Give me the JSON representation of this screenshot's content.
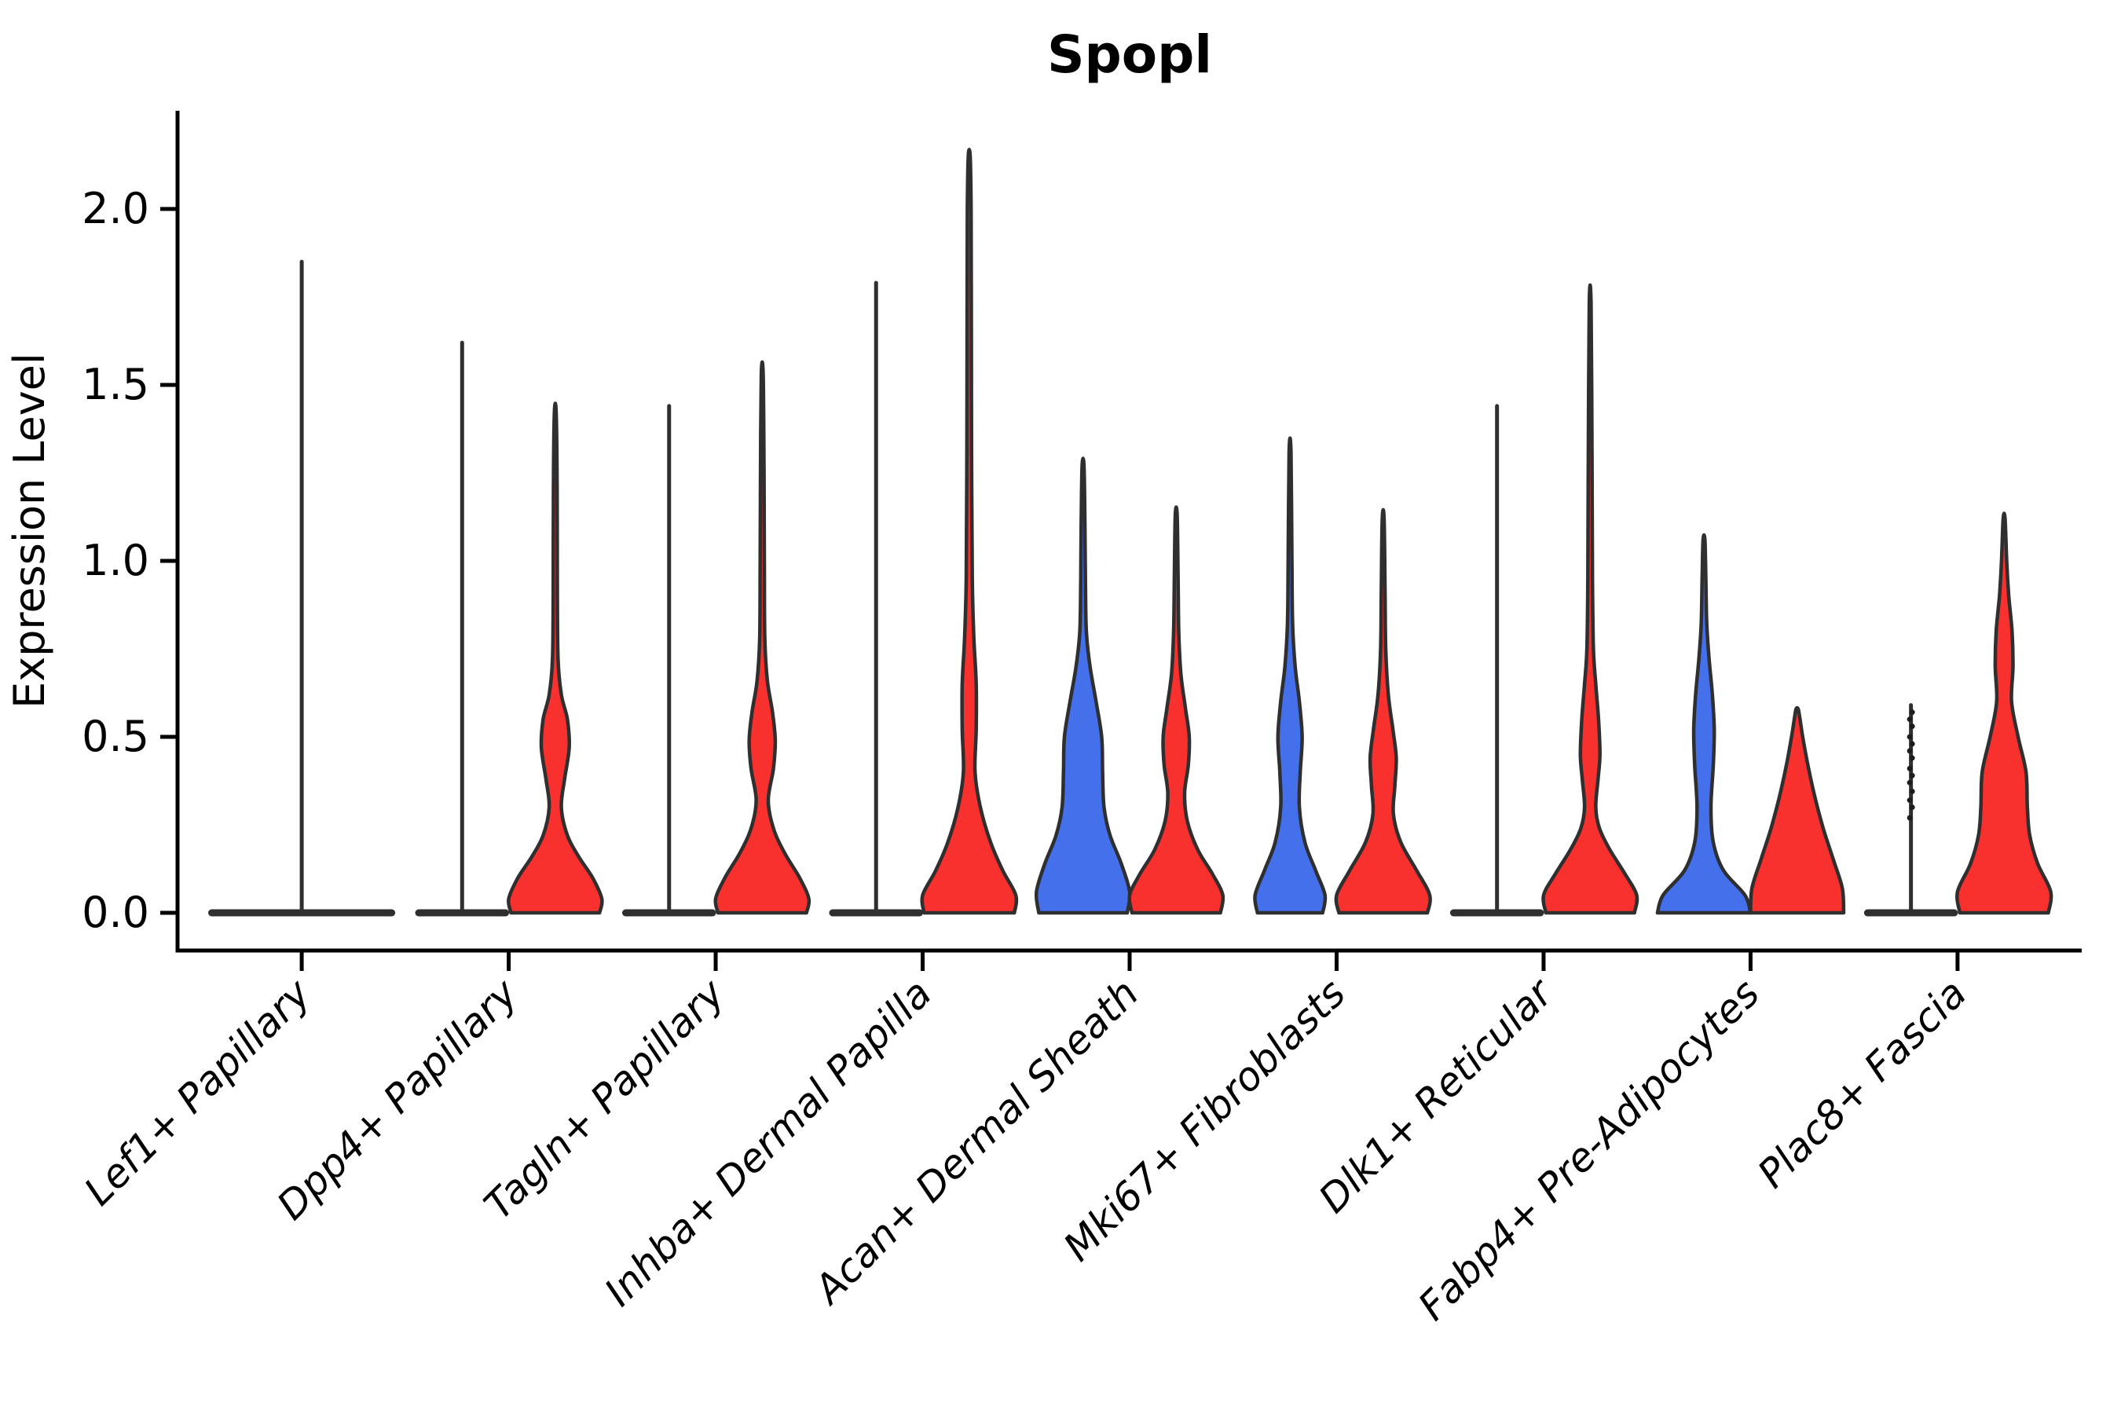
{
  "chart_data": {
    "type": "violin",
    "title": "Spopl",
    "ylabel": "Expression Level",
    "yticks": [
      "0.0",
      "0.5",
      "1.0",
      "1.5",
      "2.0"
    ],
    "ytick_values": [
      0.0,
      0.5,
      1.0,
      1.5,
      2.0
    ],
    "ylim": [
      -0.11,
      2.28
    ],
    "grid": false,
    "legend": "none",
    "colors": {
      "blue_fill": "#4470EB",
      "red_fill": "#F8312F",
      "outline": "#2F2F2F",
      "axis": "#000000"
    },
    "categories": [
      "Lef1+ Papillary",
      "Dpp4+ Papillary",
      "Tagln+ Papillary",
      "Inhba+ Dermal Papilla",
      "Acan+ Dermal Sheath",
      "Mki67+ Fibroblasts",
      "Dlk1+ Reticular",
      "Fabp4+ Pre-Adipocytes",
      "Plac8+ Fascia"
    ],
    "groups": [
      {
        "category": "Lef1+ Papillary",
        "violins": [
          {
            "side": "center",
            "color": "none",
            "kind": "flat_spike",
            "top": 1.85,
            "width_units": 0.9
          }
        ]
      },
      {
        "category": "Dpp4+ Papillary",
        "violins": [
          {
            "side": "left",
            "color": "blue",
            "kind": "flat_spike",
            "top": 1.62,
            "width_units": 0.45
          },
          {
            "side": "right",
            "color": "red",
            "kind": "density",
            "top": 1.42,
            "width_units": 0.45,
            "profile": [
              [
                0,
                0.95
              ],
              [
                0.04,
                1.0
              ],
              [
                0.1,
                0.8
              ],
              [
                0.16,
                0.5
              ],
              [
                0.22,
                0.26
              ],
              [
                0.3,
                0.13
              ],
              [
                0.38,
                0.2
              ],
              [
                0.47,
                0.3
              ],
              [
                0.55,
                0.26
              ],
              [
                0.62,
                0.13
              ],
              [
                0.72,
                0.06
              ],
              [
                0.9,
                0.045
              ],
              [
                1.2,
                0.04
              ],
              [
                1.42,
                0.02
              ]
            ]
          }
        ]
      },
      {
        "category": "Tagln+ Papillary",
        "violins": [
          {
            "side": "left",
            "color": "blue",
            "kind": "flat_spike",
            "top": 1.44,
            "width_units": 0.45
          },
          {
            "side": "right",
            "color": "red",
            "kind": "density",
            "top": 1.53,
            "width_units": 0.45,
            "profile": [
              [
                0,
                0.95
              ],
              [
                0.04,
                1.0
              ],
              [
                0.1,
                0.8
              ],
              [
                0.17,
                0.48
              ],
              [
                0.24,
                0.24
              ],
              [
                0.32,
                0.13
              ],
              [
                0.41,
                0.24
              ],
              [
                0.49,
                0.28
              ],
              [
                0.57,
                0.22
              ],
              [
                0.66,
                0.11
              ],
              [
                0.78,
                0.055
              ],
              [
                1.0,
                0.045
              ],
              [
                1.25,
                0.038
              ],
              [
                1.53,
                0.02
              ]
            ]
          }
        ]
      },
      {
        "category": "Inhba+ Dermal Papilla",
        "violins": [
          {
            "side": "left",
            "color": "blue",
            "kind": "flat_spike",
            "top": 1.79,
            "width_units": 0.45
          },
          {
            "side": "right",
            "color": "red",
            "kind": "density",
            "top": 2.15,
            "width_units": 0.45,
            "profile": [
              [
                0,
                0.97
              ],
              [
                0.05,
                1.0
              ],
              [
                0.12,
                0.72
              ],
              [
                0.2,
                0.46
              ],
              [
                0.3,
                0.24
              ],
              [
                0.4,
                0.125
              ],
              [
                0.52,
                0.15
              ],
              [
                0.65,
                0.15
              ],
              [
                0.78,
                0.1
              ],
              [
                0.95,
                0.065
              ],
              [
                1.3,
                0.05
              ],
              [
                1.7,
                0.045
              ],
              [
                2.0,
                0.04
              ],
              [
                2.15,
                0.02
              ]
            ]
          }
        ]
      },
      {
        "category": "Acan+ Dermal Sheath",
        "violins": [
          {
            "side": "left",
            "color": "blue",
            "kind": "density",
            "top": 1.27,
            "width_units": 0.45,
            "profile": [
              [
                0,
                0.95
              ],
              [
                0.06,
                1.0
              ],
              [
                0.14,
                0.82
              ],
              [
                0.22,
                0.58
              ],
              [
                0.3,
                0.45
              ],
              [
                0.4,
                0.42
              ],
              [
                0.5,
                0.4
              ],
              [
                0.6,
                0.28
              ],
              [
                0.7,
                0.15
              ],
              [
                0.8,
                0.07
              ],
              [
                0.95,
                0.05
              ],
              [
                1.1,
                0.04
              ],
              [
                1.27,
                0.02
              ]
            ]
          },
          {
            "side": "right",
            "color": "red",
            "kind": "density",
            "top": 1.13,
            "width_units": 0.45,
            "profile": [
              [
                0,
                0.95
              ],
              [
                0.05,
                1.0
              ],
              [
                0.11,
                0.78
              ],
              [
                0.18,
                0.46
              ],
              [
                0.26,
                0.24
              ],
              [
                0.34,
                0.18
              ],
              [
                0.42,
                0.26
              ],
              [
                0.5,
                0.28
              ],
              [
                0.58,
                0.2
              ],
              [
                0.68,
                0.1
              ],
              [
                0.8,
                0.055
              ],
              [
                0.95,
                0.04
              ],
              [
                1.13,
                0.02
              ]
            ]
          }
        ]
      },
      {
        "category": "Mki67+ Fibroblasts",
        "violins": [
          {
            "side": "left",
            "color": "blue",
            "kind": "density",
            "top": 1.31,
            "width_units": 0.45,
            "profile": [
              [
                0,
                0.7
              ],
              [
                0.05,
                0.75
              ],
              [
                0.12,
                0.55
              ],
              [
                0.2,
                0.32
              ],
              [
                0.3,
                0.2
              ],
              [
                0.4,
                0.22
              ],
              [
                0.5,
                0.26
              ],
              [
                0.6,
                0.2
              ],
              [
                0.7,
                0.11
              ],
              [
                0.82,
                0.055
              ],
              [
                1.0,
                0.04
              ],
              [
                1.31,
                0.02
              ]
            ]
          },
          {
            "side": "right",
            "color": "red",
            "kind": "density",
            "top": 1.12,
            "width_units": 0.45,
            "profile": [
              [
                0,
                0.95
              ],
              [
                0.05,
                1.0
              ],
              [
                0.12,
                0.72
              ],
              [
                0.2,
                0.38
              ],
              [
                0.28,
                0.22
              ],
              [
                0.36,
                0.25
              ],
              [
                0.44,
                0.28
              ],
              [
                0.52,
                0.21
              ],
              [
                0.62,
                0.11
              ],
              [
                0.75,
                0.055
              ],
              [
                0.92,
                0.04
              ],
              [
                1.12,
                0.02
              ]
            ]
          }
        ]
      },
      {
        "category": "Dlk1+ Reticular",
        "violins": [
          {
            "side": "left",
            "color": "blue",
            "kind": "flat_spike",
            "top": 1.44,
            "width_units": 0.45
          },
          {
            "side": "right",
            "color": "red",
            "kind": "density",
            "top": 1.73,
            "width_units": 0.45,
            "profile": [
              [
                0,
                0.95
              ],
              [
                0.05,
                1.0
              ],
              [
                0.11,
                0.75
              ],
              [
                0.18,
                0.42
              ],
              [
                0.24,
                0.2
              ],
              [
                0.3,
                0.12
              ],
              [
                0.38,
                0.17
              ],
              [
                0.45,
                0.21
              ],
              [
                0.55,
                0.18
              ],
              [
                0.65,
                0.12
              ],
              [
                0.75,
                0.07
              ],
              [
                0.95,
                0.05
              ],
              [
                1.3,
                0.04
              ],
              [
                1.73,
                0.02
              ]
            ]
          }
        ]
      },
      {
        "category": "Fabp4+ Pre-Adipocytes",
        "violins": [
          {
            "side": "left",
            "color": "blue",
            "kind": "density",
            "top": 1.06,
            "width_units": 0.45,
            "profile": [
              [
                0,
                1.0
              ],
              [
                0.05,
                0.88
              ],
              [
                0.12,
                0.42
              ],
              [
                0.2,
                0.2
              ],
              [
                0.3,
                0.15
              ],
              [
                0.42,
                0.2
              ],
              [
                0.52,
                0.22
              ],
              [
                0.62,
                0.18
              ],
              [
                0.72,
                0.11
              ],
              [
                0.82,
                0.06
              ],
              [
                0.95,
                0.04
              ],
              [
                1.06,
                0.02
              ]
            ]
          },
          {
            "side": "right",
            "color": "red",
            "kind": "density",
            "top": 0.58,
            "width_units": 0.45,
            "profile": [
              [
                0,
                1.0
              ],
              [
                0.07,
                0.97
              ],
              [
                0.15,
                0.78
              ],
              [
                0.24,
                0.56
              ],
              [
                0.33,
                0.38
              ],
              [
                0.42,
                0.23
              ],
              [
                0.5,
                0.12
              ],
              [
                0.56,
                0.05
              ],
              [
                0.58,
                0.02
              ]
            ]
          }
        ]
      },
      {
        "category": "Plac8+ Fascia",
        "violins": [
          {
            "side": "left",
            "color": "blue",
            "kind": "flat_spike",
            "top": 0.59,
            "width_units": 0.45,
            "dots": [
              0.27,
              0.3,
              0.32,
              0.345,
              0.37,
              0.39,
              0.41,
              0.44,
              0.46,
              0.48,
              0.5,
              0.53,
              0.55,
              0.57
            ]
          },
          {
            "side": "right",
            "color": "red",
            "kind": "density",
            "top": 1.12,
            "width_units": 0.45,
            "profile": [
              [
                0,
                0.95
              ],
              [
                0.06,
                1.0
              ],
              [
                0.14,
                0.72
              ],
              [
                0.22,
                0.55
              ],
              [
                0.3,
                0.5
              ],
              [
                0.4,
                0.47
              ],
              [
                0.5,
                0.3
              ],
              [
                0.6,
                0.16
              ],
              [
                0.7,
                0.19
              ],
              [
                0.8,
                0.17
              ],
              [
                0.9,
                0.1
              ],
              [
                1.0,
                0.055
              ],
              [
                1.12,
                0.02
              ]
            ]
          }
        ]
      }
    ]
  }
}
